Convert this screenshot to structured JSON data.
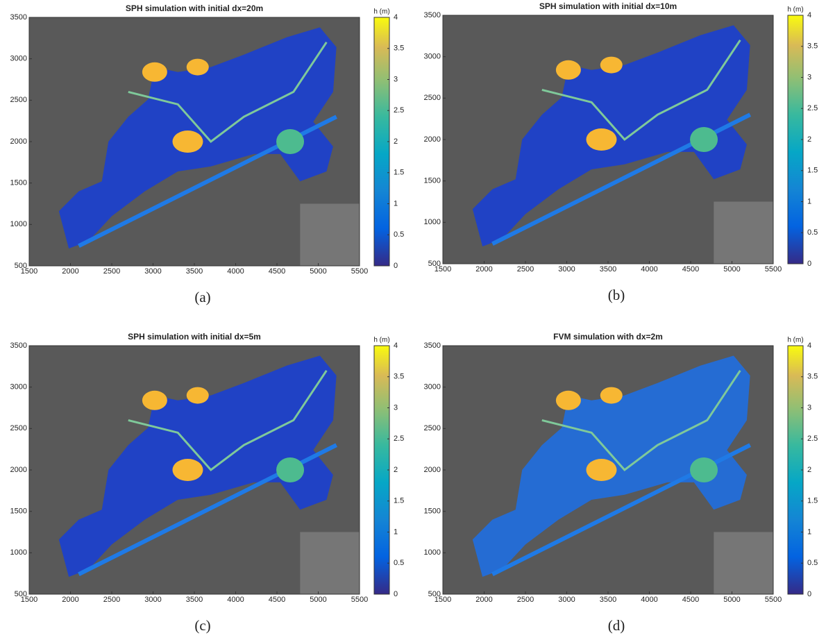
{
  "chart_data": [
    {
      "type": "heatmap",
      "title": "SPH simulation with initial dx=20m",
      "colorbar_label": "h (m)",
      "colormap": "parula",
      "xlim": [
        1500,
        5500
      ],
      "ylim": [
        500,
        3500
      ],
      "xticks": [
        1500,
        2000,
        2500,
        3000,
        3500,
        4000,
        4500,
        5000,
        5500
      ],
      "yticks": [
        500,
        1000,
        1500,
        2000,
        2500,
        3000,
        3500
      ],
      "clim": [
        0,
        4
      ],
      "cticks": [
        0,
        0.5,
        1,
        1.5,
        2,
        2.5,
        3,
        3.5,
        4
      ],
      "caption": "(a)"
    },
    {
      "type": "heatmap",
      "title": "SPH simulation with initial dx=10m",
      "colorbar_label": "h (m)",
      "colormap": "parula",
      "xlim": [
        1500,
        5500
      ],
      "ylim": [
        500,
        3500
      ],
      "xticks": [
        1500,
        2000,
        2500,
        3000,
        3500,
        4000,
        4500,
        5000,
        5500
      ],
      "yticks": [
        500,
        1000,
        1500,
        2000,
        2500,
        3000,
        3500
      ],
      "clim": [
        0,
        4
      ],
      "cticks": [
        0,
        0.5,
        1,
        1.5,
        2,
        2.5,
        3,
        3.5,
        4
      ],
      "caption": "(b)"
    },
    {
      "type": "heatmap",
      "title": "SPH simulation with initial dx=5m",
      "colorbar_label": "h (m)",
      "colormap": "parula",
      "xlim": [
        1500,
        5500
      ],
      "ylim": [
        500,
        3500
      ],
      "xticks": [
        1500,
        2000,
        2500,
        3000,
        3500,
        4000,
        4500,
        5000,
        5500
      ],
      "yticks": [
        500,
        1000,
        1500,
        2000,
        2500,
        3000,
        3500
      ],
      "clim": [
        0,
        4
      ],
      "cticks": [
        0,
        0.5,
        1,
        1.5,
        2,
        2.5,
        3,
        3.5,
        4
      ],
      "caption": "(c)"
    },
    {
      "type": "heatmap",
      "title": "FVM simulation with dx=2m",
      "colorbar_label": "h (m)",
      "colormap": "parula",
      "xlim": [
        1500,
        5500
      ],
      "ylim": [
        500,
        3500
      ],
      "xticks": [
        1500,
        2000,
        2500,
        3000,
        3500,
        4000,
        4500,
        5000,
        5500
      ],
      "yticks": [
        500,
        1000,
        1500,
        2000,
        2500,
        3000,
        3500
      ],
      "clim": [
        0,
        4
      ],
      "cticks": [
        0,
        0.5,
        1,
        1.5,
        2,
        2.5,
        3,
        3.5,
        4
      ],
      "caption": "(d)"
    }
  ]
}
